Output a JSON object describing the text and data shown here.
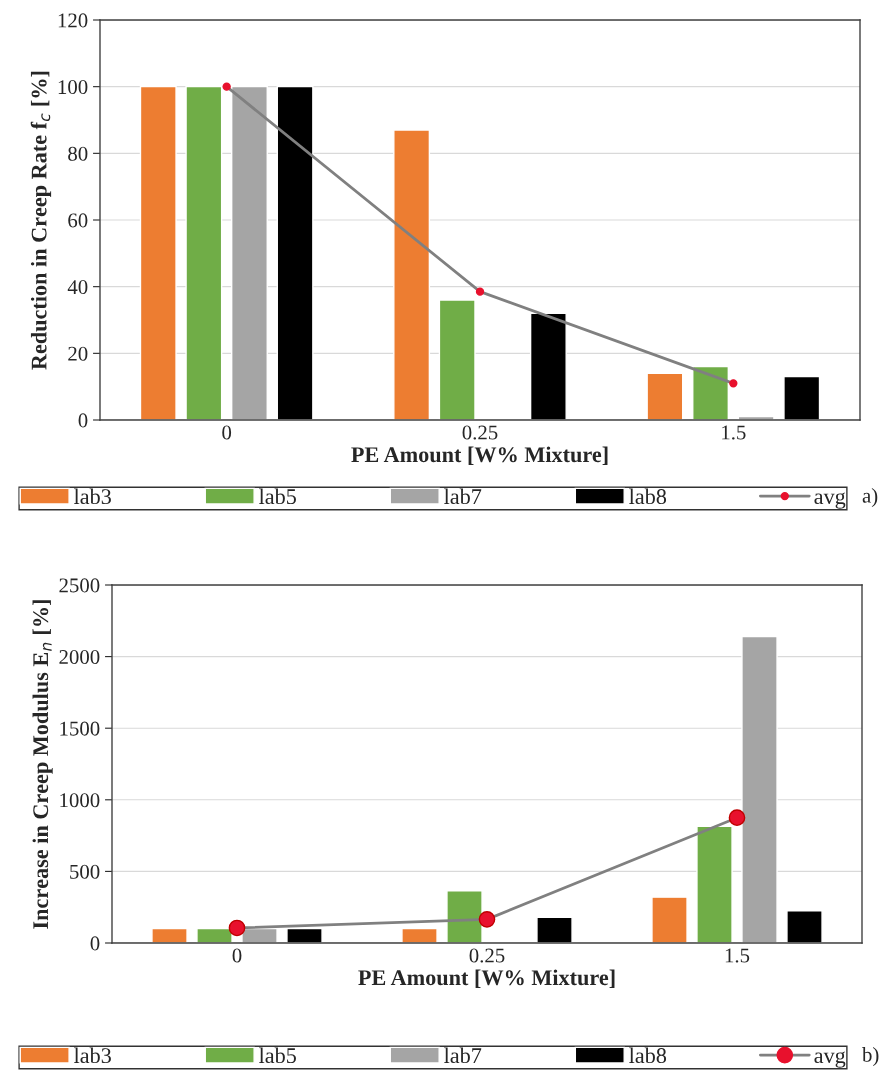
{
  "chart_data": [
    {
      "type": "bar",
      "xlabel": "PE Amount [W% Mixture]",
      "ylabel": "Reduction in Creep Rate f$_{c}$ [%]",
      "categories": [
        "0",
        "0.25",
        "1.5"
      ],
      "series": [
        {
          "name": "lab3",
          "color": "#ed7d31",
          "values": [
            100,
            87,
            14
          ]
        },
        {
          "name": "lab5",
          "color": "#70ad47",
          "values": [
            100,
            36,
            16
          ]
        },
        {
          "name": "lab7",
          "color": "#a5a5a5",
          "values": [
            100,
            null,
            1
          ]
        },
        {
          "name": "lab8",
          "color": "#000000",
          "values": [
            100,
            32,
            13
          ]
        },
        {
          "name": "avg",
          "type": "line",
          "color": "#808080",
          "marker": "circle",
          "values": [
            100,
            38.5,
            11
          ]
        }
      ],
      "ylim": [
        0,
        120
      ],
      "yticks": [
        0,
        20,
        40,
        60,
        80,
        100,
        120
      ],
      "grid": "y",
      "legend": "bottom",
      "annotations": [
        "a)"
      ]
    },
    {
      "type": "bar",
      "xlabel": "PE Amount [W% Mixture]",
      "ylabel": "Increase in Creep Modulus E$_{n}$ [%]",
      "categories": [
        "0",
        "0.25",
        "1.5"
      ],
      "series": [
        {
          "name": "lab3",
          "color": "#ed7d31",
          "values": [
            100,
            100,
            320
          ]
        },
        {
          "name": "lab5",
          "color": "#70ad47",
          "values": [
            100,
            365,
            815
          ]
        },
        {
          "name": "lab7",
          "color": "#a5a5a5",
          "values": [
            100,
            null,
            2140
          ]
        },
        {
          "name": "lab8",
          "color": "#000000",
          "values": [
            100,
            180,
            225
          ]
        },
        {
          "name": "avg",
          "type": "line",
          "color": "#808080",
          "marker": "circle",
          "values": [
            105,
            165,
            875
          ]
        }
      ],
      "ylim": [
        0,
        2500
      ],
      "yticks": [
        0,
        500,
        1000,
        1500,
        2000,
        2500
      ],
      "grid": "y",
      "legend": "bottom",
      "annotations": [
        "b)"
      ]
    }
  ]
}
